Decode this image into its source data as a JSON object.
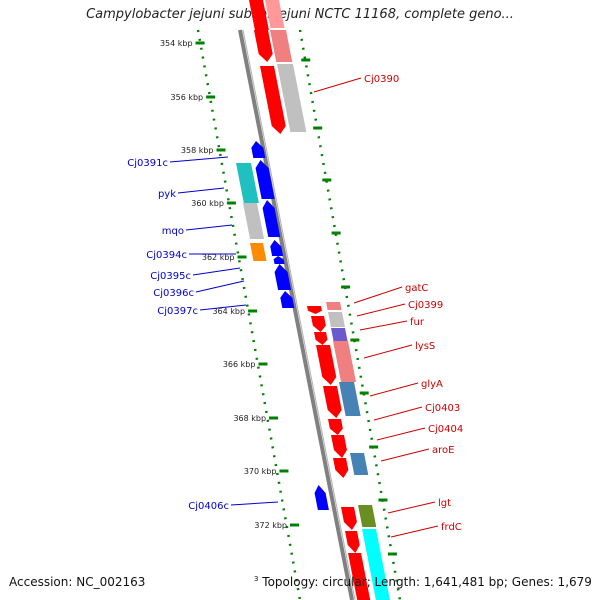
{
  "title": "Campylobacter jejuni subsp. jejuni NCTC 11168, complete geno...",
  "footer": {
    "accession": "Accession: NC_002163",
    "sup_mark": "3",
    "info": "Topology: circular; Length: 1,641,481 bp; Genes: 1,679"
  },
  "colors": {
    "forward_gene": "#ff0000",
    "reverse_gene": "#0000ff",
    "forward_label": "#cc0000",
    "reverse_label": "#0000cc",
    "tick_dots": "#008000",
    "backbone": "#808080"
  },
  "ticks": [
    {
      "label": "354 kbp"
    },
    {
      "label": "356 kbp"
    },
    {
      "label": "358 kbp"
    },
    {
      "label": "360 kbp"
    },
    {
      "label": "362 kbp"
    },
    {
      "label": "364 kbp"
    },
    {
      "label": "366 kbp"
    },
    {
      "label": "368 kbp"
    },
    {
      "label": "370 kbp"
    },
    {
      "label": "372 kbp"
    }
  ],
  "reverse_labels": [
    "Cj0391c",
    "pyk",
    "mqo",
    "Cj0394c",
    "Cj0395c",
    "Cj0396c",
    "Cj0397c",
    "Cj0406c"
  ],
  "forward_labels": [
    "Cj0390",
    "gatC",
    "Cj0399",
    "fur",
    "lysS",
    "glyA",
    "Cj0403",
    "Cj0404",
    "aroE",
    "lgt",
    "frdC"
  ],
  "feature_types": [
    "gene",
    "CDS",
    "COG category"
  ]
}
